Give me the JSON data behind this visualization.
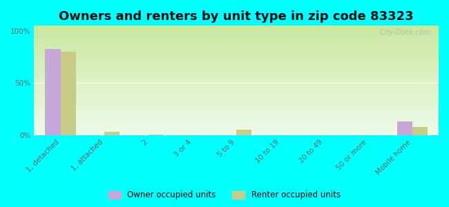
{
  "title": "Owners and renters by unit type in zip code 83323",
  "categories": [
    "1, detached",
    "1, attached",
    "2",
    "3 or 4",
    "5 to 9",
    "10 to 19",
    "20 to 49",
    "50 or more",
    "Mobile home"
  ],
  "owner_values": [
    83,
    0,
    0,
    0,
    0,
    0,
    0,
    0,
    13
  ],
  "renter_values": [
    80,
    3,
    0.5,
    0,
    5,
    0,
    0,
    0,
    8
  ],
  "owner_color": "#c8a8d8",
  "renter_color": "#c8cc88",
  "grad_top": "#c8e8a0",
  "grad_bottom": "#f0fae8",
  "outer_bg": "#00ffff",
  "ylabel_ticks": [
    0,
    50,
    100
  ],
  "ylabel_labels": [
    "0%",
    "50%",
    "100%"
  ],
  "bar_width": 0.35,
  "legend_owner": "Owner occupied units",
  "legend_renter": "Renter occupied units",
  "watermark": "City-Data.com",
  "title_fontsize": 13,
  "tick_fontsize": 7.5
}
